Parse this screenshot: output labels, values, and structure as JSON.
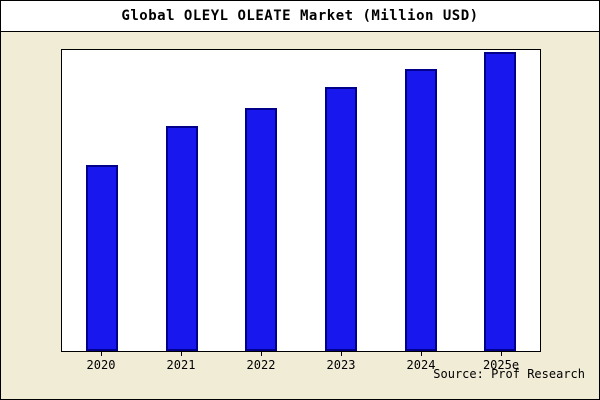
{
  "title": "Global OLEYL OLEATE Market (Million USD)",
  "source": "Source: Prof Research",
  "colors": {
    "bar_fill": "#1717EE",
    "bar_border": "#00008B",
    "page_background": "#F1ECD6",
    "plot_background": "#FFFFFF"
  },
  "chart_data": {
    "type": "bar",
    "title": "Global OLEYL OLEATE Market (Million USD)",
    "categories": [
      "2020",
      "2021",
      "2022",
      "2023",
      "2024",
      "2025e"
    ],
    "values": [
      62,
      75,
      81,
      88,
      94,
      100
    ],
    "xlabel": "",
    "ylabel": "",
    "ylim": [
      0,
      100
    ],
    "grid": false,
    "legend_position": "none"
  }
}
